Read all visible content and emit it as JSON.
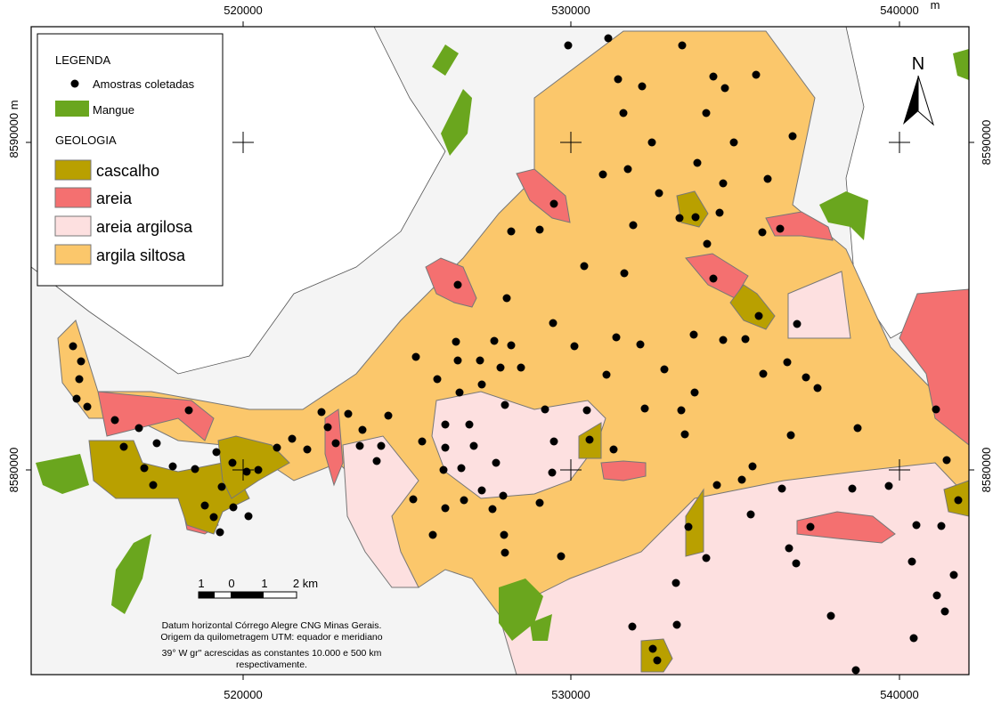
{
  "coordinates": {
    "top": [
      "520000",
      "530000",
      "540000"
    ],
    "top_unit": "m",
    "bottom": [
      "520000",
      "530000",
      "540000"
    ],
    "left": [
      "8590000 m",
      "8580000"
    ],
    "right": [
      "8590000",
      "8580000"
    ]
  },
  "legend": {
    "title": "LEGENDA",
    "samples": "Amostras coletadas",
    "mangrove": "Mangue",
    "geology_title": "GEOLOGIA",
    "geology": [
      "cascalho",
      "areia",
      "areia argilosa",
      "argila siltosa"
    ]
  },
  "north": "N",
  "scale": {
    "labels": [
      "1",
      "0",
      "1",
      "2 km"
    ]
  },
  "note": [
    "Datum horizontal Córrego Alegre CNG Minas Gerais.",
    "Origem da quilometragem UTM: equador e meridiano",
    "39° W gr\" acrescidas as constantes 10.000 e 500 km",
    "respectivamente."
  ]
}
